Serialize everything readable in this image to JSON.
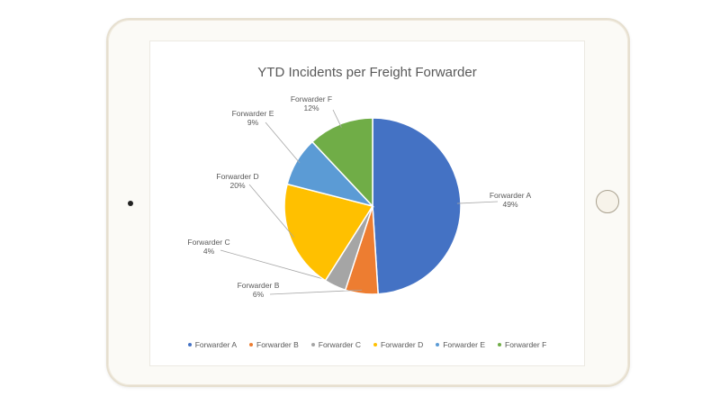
{
  "chart_data": {
    "type": "pie",
    "title": "YTD Incidents per Freight Forwarder",
    "slices": [
      {
        "name": "Forwarder A",
        "value": 49,
        "label": "49%",
        "color": "#4472c4"
      },
      {
        "name": "Forwarder B",
        "value": 6,
        "label": "6%",
        "color": "#ed7d31"
      },
      {
        "name": "Forwarder C",
        "value": 4,
        "label": "4%",
        "color": "#a5a5a5"
      },
      {
        "name": "Forwarder D",
        "value": 20,
        "label": "20%",
        "color": "#ffc000"
      },
      {
        "name": "Forwarder E",
        "value": 9,
        "label": "9%",
        "color": "#5b9bd5"
      },
      {
        "name": "Forwarder F",
        "value": 12,
        "label": "12%",
        "color": "#70ad47"
      }
    ],
    "legend_position": "bottom"
  }
}
